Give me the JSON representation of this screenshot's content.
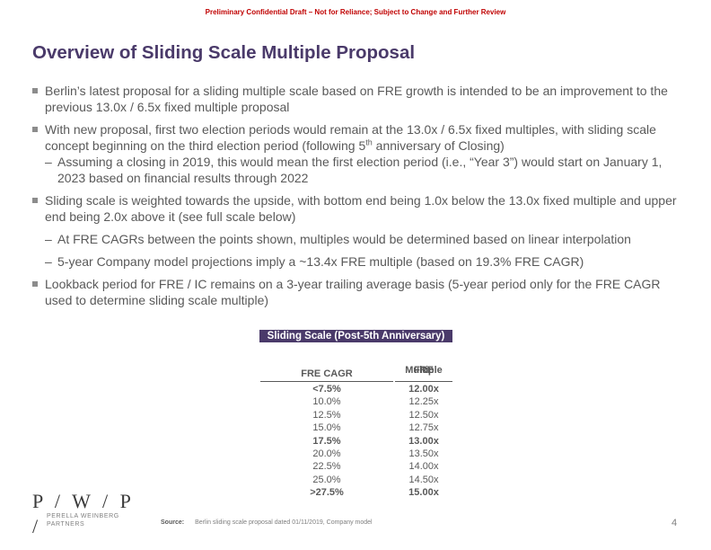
{
  "banner": "Preliminary Confidential Draft – Not for Reliance; Subject to Change and Further Review",
  "title": "Overview of Sliding Scale Multiple Proposal",
  "bullets": {
    "b1": "Berlin’s latest proposal for a sliding multiple scale based on FRE growth is intended to be an improvement to the previous 13.0x / 6.5x fixed multiple proposal",
    "b2_pre": "With new proposal, first two election periods would remain at the 13.0x / 6.5x fixed multiples, with sliding scale concept beginning on the third election period (following 5",
    "b2_sup": "th",
    "b2_post": " anniversary of Closing)",
    "s1": "Assuming a closing in 2019, this would mean the first election period (i.e., “Year 3”) would start on January 1, 2023 based on financial results through 2022",
    "b3": "Sliding scale is weighted towards the upside, with bottom end being 1.0x below the 13.0x fixed multiple and upper end being 2.0x above it (see full scale below)",
    "s2": "At FRE CAGRs between the points shown, multiples would be determined based on linear interpolation",
    "s3": "5-year Company model projections imply a ~13.4x FRE multiple (based on 19.3% FRE CAGR)",
    "b4": "Lookback period for FRE / IC remains on a 3-year trailing average basis (5-year period only for the FRE CAGR used to determine sliding scale multiple)",
    "dash": "–"
  },
  "table": {
    "header": "Sliding Scale (Post-5th Anniversary)",
    "col1": "FRE CAGR",
    "col2_line1": "FRE",
    "col2_line2": "Multiple",
    "rows": [
      {
        "cagr": "<7.5%",
        "mult": "12.00x"
      },
      {
        "cagr": "10.0%",
        "mult": "12.25x"
      },
      {
        "cagr": "12.5%",
        "mult": "12.50x"
      },
      {
        "cagr": "15.0%",
        "mult": "12.75x"
      },
      {
        "cagr": "17.5%",
        "mult": "13.00x"
      },
      {
        "cagr": "20.0%",
        "mult": "13.50x"
      },
      {
        "cagr": "22.5%",
        "mult": "14.00x"
      },
      {
        "cagr": "25.0%",
        "mult": "14.50x"
      },
      {
        "cagr": ">27.5%",
        "mult": "15.00x"
      }
    ]
  },
  "logo": {
    "main": "P / W / P",
    "slash": "/",
    "line1": "PERELLA WEINBERG",
    "line2": "PARTNERS"
  },
  "footer": {
    "source_label": "Source:",
    "source_text": "Berlin sliding scale proposal dated 01/11/2019, Company model",
    "page": "4"
  }
}
